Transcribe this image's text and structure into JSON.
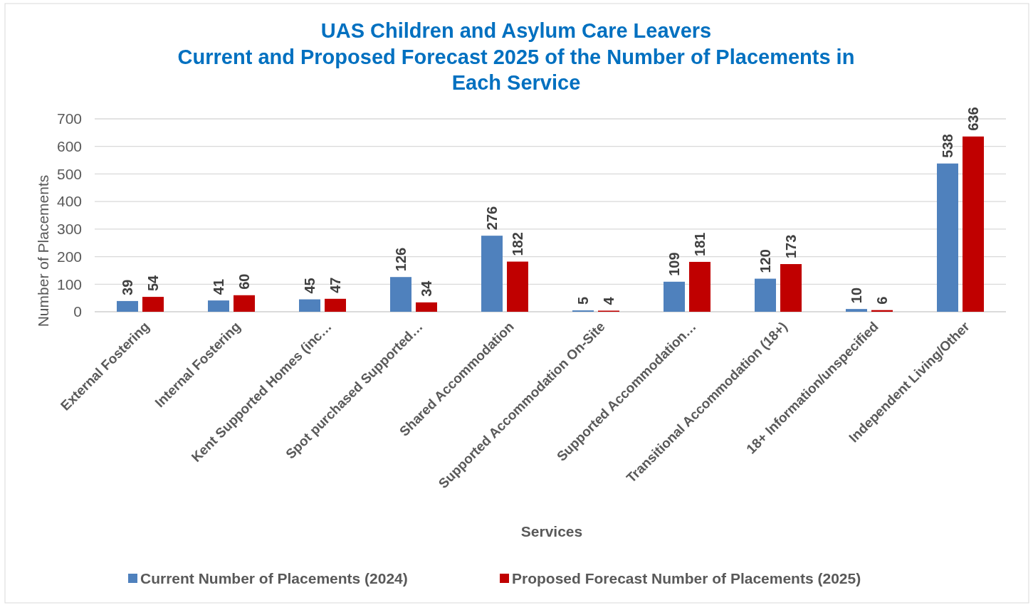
{
  "chart_data": {
    "type": "bar",
    "title": "UAS Children and Asylum Care Leavers\nCurrent and Proposed Forecast 2025 of the Number of Placements in\nEach Service",
    "xlabel": "Services",
    "ylabel": "Number of Placements",
    "categories": [
      "External Fostering",
      "Internal Fostering",
      "Kent Supported Homes (inc…",
      "Spot purchased Supported…",
      "Shared Accommodation",
      "Supported Accommodation On-Site",
      "Supported Accommodation…",
      "Transitional Accommodation (18+)",
      "18+ Information/unspecified",
      "Independent Living/Other"
    ],
    "series": [
      {
        "name": "Current Number of Placements (2024)",
        "color": "#4f81bd",
        "values": [
          39,
          41,
          45,
          126,
          276,
          5,
          109,
          120,
          10,
          538
        ]
      },
      {
        "name": "Proposed Forecast Number of Placements (2025)",
        "color": "#c00000",
        "values": [
          54,
          60,
          47,
          34,
          182,
          4,
          181,
          173,
          6,
          636
        ]
      }
    ],
    "ylim": [
      0,
      700
    ],
    "yticks": [
      0,
      100,
      200,
      300,
      400,
      500,
      600,
      700
    ],
    "grid": "y",
    "legend": "bottom",
    "data_labels": true
  }
}
